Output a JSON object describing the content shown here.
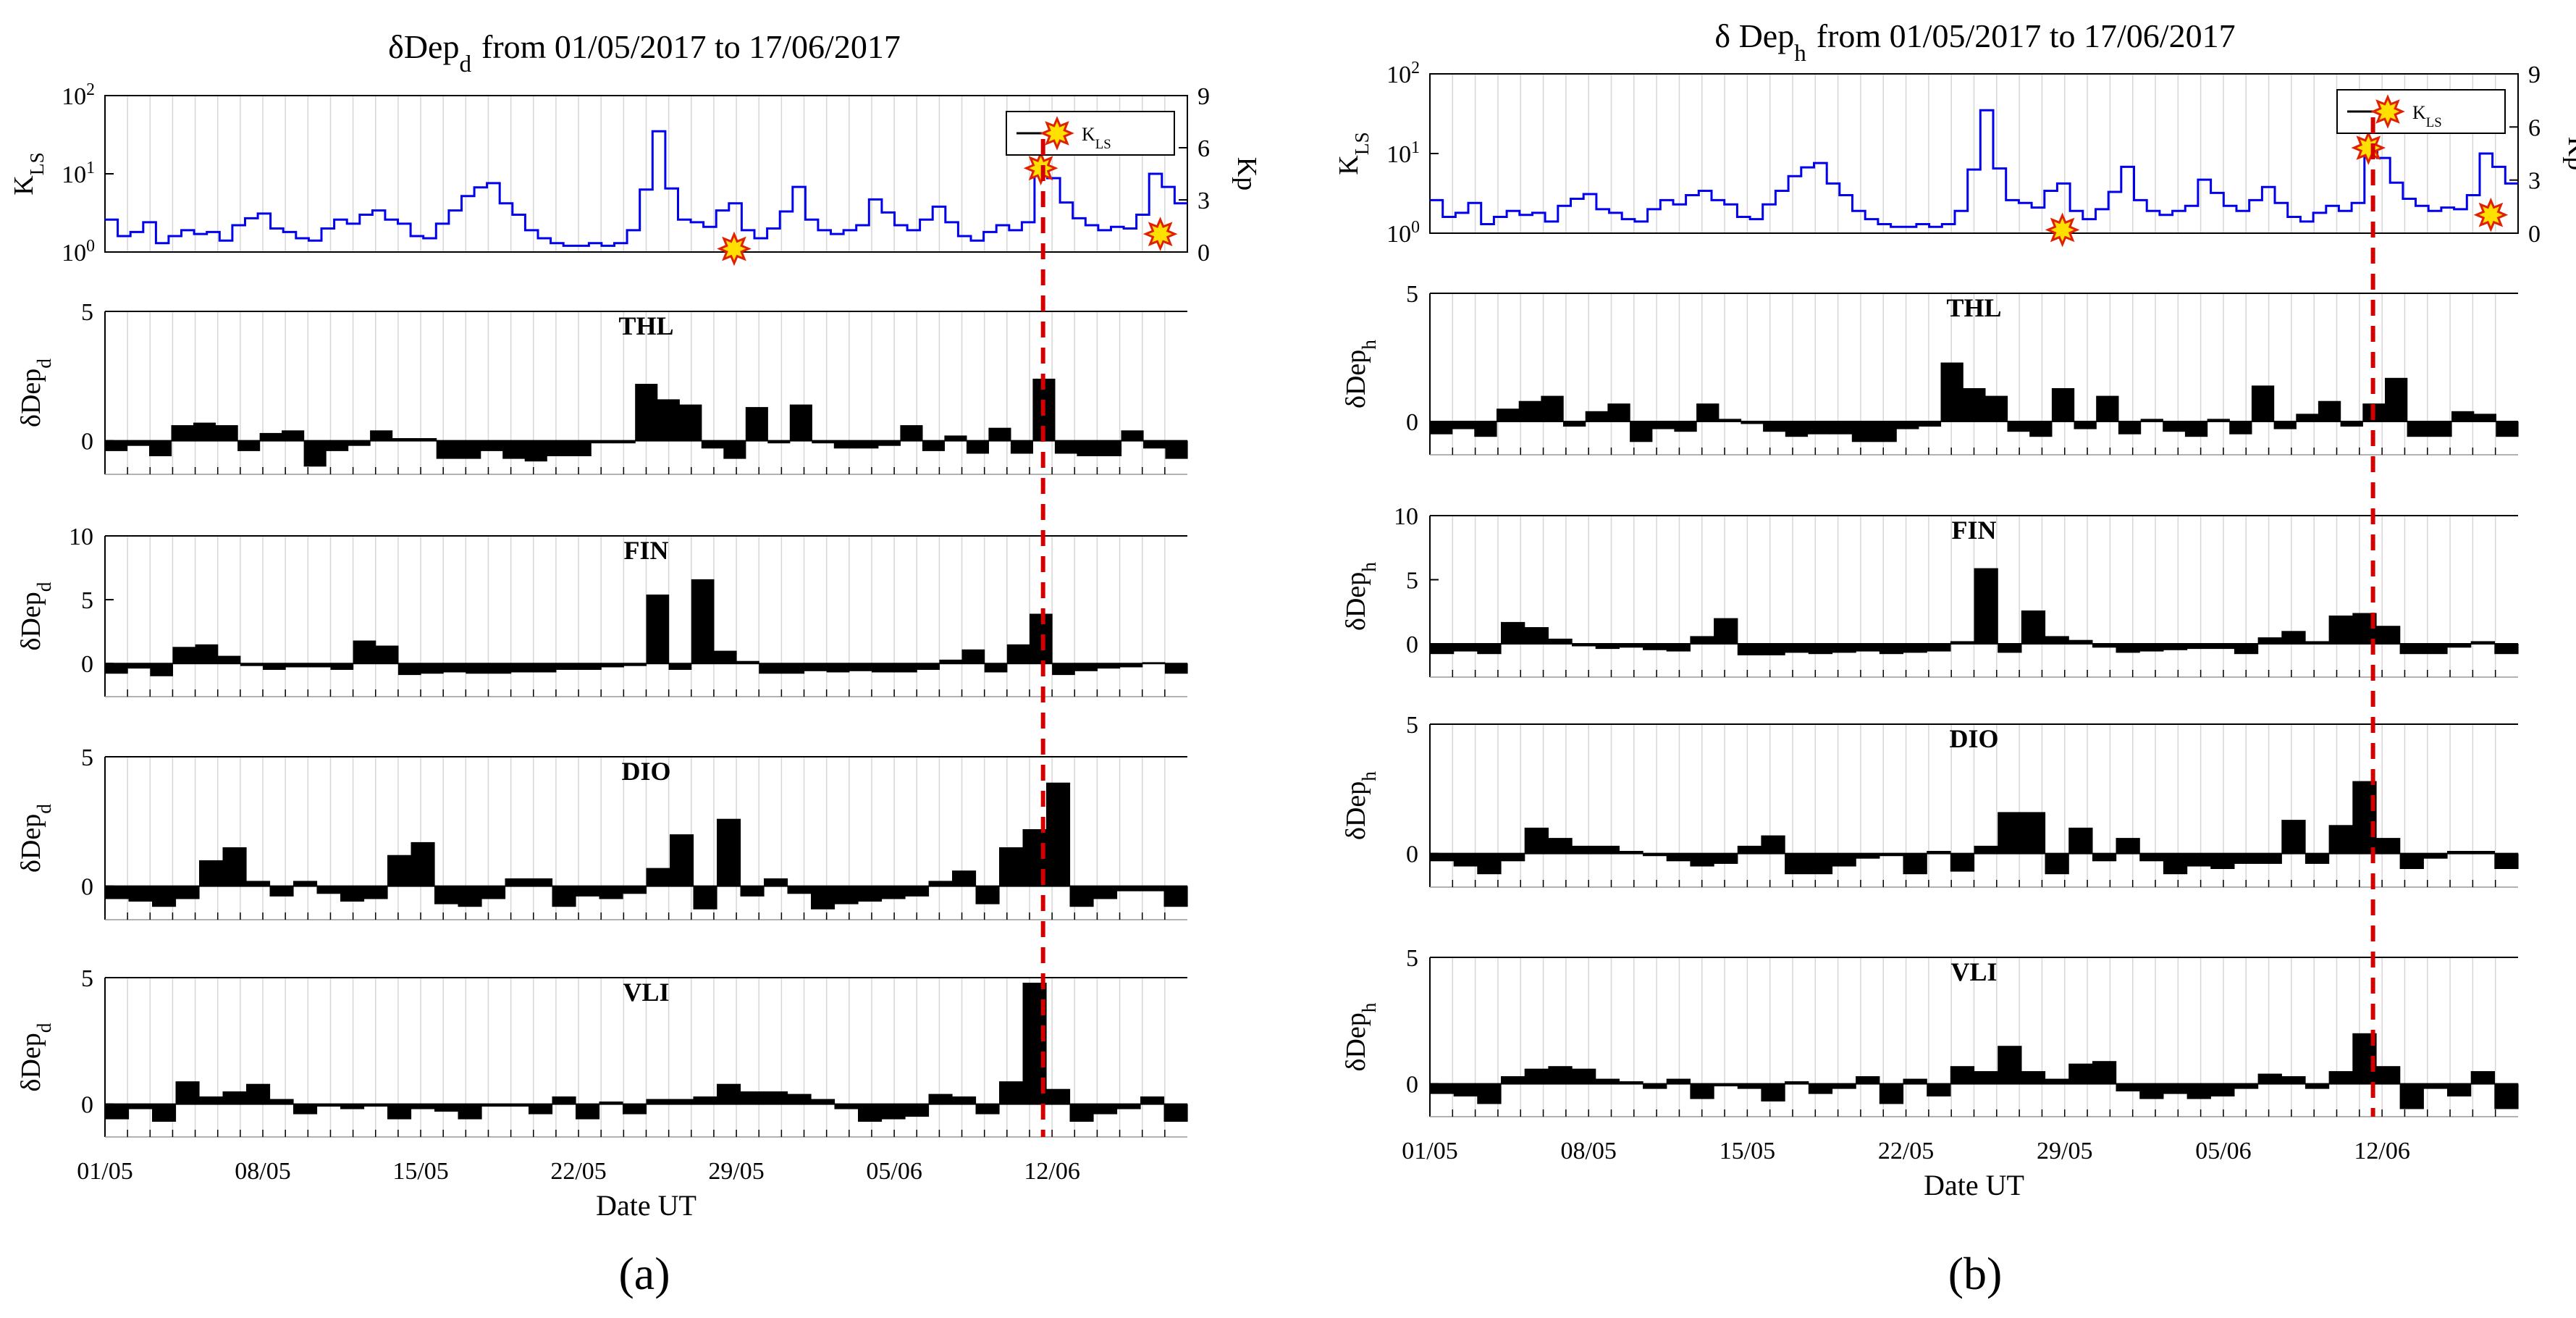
{
  "chart_data": [
    {
      "type": "bar",
      "id": "a",
      "panel_label": "(a)",
      "title_prefix": "δDep",
      "title_sub": "d",
      "title_suffix": "from  01/05/2017  to  17/06/2017",
      "kls": {
        "ylabel_main": "K",
        "ylabel_sub": "LS",
        "y2label": "Kp",
        "yticks": [
          {
            "base": "10",
            "exp": "0"
          },
          {
            "base": "10",
            "exp": "1"
          },
          {
            "base": "10",
            "exp": "2"
          }
        ],
        "y2ticks": [
          "0",
          "3",
          "6",
          "9"
        ],
        "legend": {
          "main": "K",
          "sub": "LS"
        },
        "series": [
          2.6,
          1.6,
          1.8,
          2.4,
          1.3,
          1.6,
          1.9,
          1.7,
          1.8,
          1.4,
          2.2,
          2.7,
          3.1,
          2.0,
          1.8,
          1.5,
          1.4,
          2.0,
          2.6,
          2.3,
          3.0,
          3.4,
          2.6,
          2.3,
          1.6,
          1.5,
          2.3,
          3.4,
          5.2,
          6.7,
          7.6,
          4.2,
          3.0,
          1.9,
          1.5,
          1.3,
          1.2,
          1.2,
          1.3,
          1.2,
          1.3,
          1.9,
          6.3,
          35.0,
          6.5,
          2.6,
          2.4,
          2.1,
          3.4,
          4.2,
          1.9,
          1.5,
          2.0,
          3.3,
          6.8,
          2.6,
          1.9,
          1.7,
          1.9,
          2.2,
          4.7,
          3.2,
          2.2,
          1.9,
          2.6,
          3.8,
          2.4,
          1.6,
          1.4,
          1.8,
          2.2,
          1.9,
          2.4,
          11.2,
          8.8,
          4.3,
          2.7,
          2.2,
          1.9,
          2.1,
          2.0,
          3.0,
          10.0,
          6.8,
          4.2
        ],
        "stars": [
          {
            "day": 27.9,
            "value": 1.1
          },
          {
            "day": 41.5,
            "value": 11.8
          },
          {
            "day": 46.8,
            "value": 1.7
          }
        ],
        "event_day": 41.6
      },
      "stations": [
        {
          "name": "THL",
          "ylabel_main": "δDep",
          "ylabel_sub": "d",
          "ymax": 5,
          "yticks": [
            "0",
            "5"
          ],
          "values": [
            -0.4,
            -0.2,
            -0.6,
            0.6,
            0.7,
            0.6,
            -0.4,
            0.3,
            0.4,
            -1.0,
            -0.4,
            -0.2,
            0.4,
            0.1,
            0.1,
            -0.7,
            -0.7,
            -0.4,
            -0.7,
            -0.8,
            -0.6,
            -0.6,
            -0.1,
            -0.1,
            2.2,
            1.6,
            1.4,
            -0.3,
            -0.7,
            1.3,
            -0.1,
            1.4,
            -0.1,
            -0.3,
            -0.3,
            -0.2,
            0.6,
            -0.4,
            0.2,
            -0.5,
            0.5,
            -0.5,
            2.4,
            -0.5,
            -0.6,
            -0.6,
            0.4,
            -0.3,
            -0.7
          ]
        },
        {
          "name": "FIN",
          "ylabel_main": "δDep",
          "ylabel_sub": "d",
          "ymax": 10,
          "yticks": [
            "0",
            "5",
            "10"
          ],
          "values": [
            -0.8,
            -0.4,
            -1.0,
            1.3,
            1.5,
            0.6,
            -0.2,
            -0.5,
            -0.3,
            -0.3,
            -0.5,
            1.8,
            1.4,
            -0.9,
            -0.8,
            -0.7,
            -0.8,
            -0.8,
            -0.7,
            -0.7,
            -0.5,
            -0.5,
            -0.3,
            -0.2,
            5.4,
            -0.5,
            6.6,
            1.0,
            0.2,
            -0.8,
            -0.8,
            -0.6,
            -0.7,
            -0.6,
            -0.7,
            -0.7,
            -0.5,
            0.3,
            1.1,
            -0.7,
            1.5,
            3.9,
            -0.9,
            -0.6,
            -0.4,
            -0.3,
            0.1,
            -0.8
          ]
        },
        {
          "name": "DIO",
          "ylabel_main": "δDep",
          "ylabel_sub": "d",
          "ymax": 5,
          "yticks": [
            "0",
            "5"
          ],
          "values": [
            -0.5,
            -0.6,
            -0.8,
            -0.5,
            1.0,
            1.5,
            0.2,
            -0.4,
            0.2,
            -0.3,
            -0.6,
            -0.5,
            1.2,
            1.7,
            -0.7,
            -0.8,
            -0.5,
            0.3,
            0.3,
            -0.8,
            -0.4,
            -0.5,
            -0.3,
            0.7,
            2.0,
            -0.9,
            2.6,
            -0.4,
            0.3,
            -0.3,
            -0.9,
            -0.7,
            -0.6,
            -0.5,
            -0.4,
            0.2,
            0.6,
            -0.7,
            1.5,
            2.2,
            4.0,
            -0.8,
            -0.5,
            -0.2,
            -0.2,
            -0.8
          ]
        },
        {
          "name": "VLI",
          "ylabel_main": "δDep",
          "ylabel_sub": "d",
          "ymax": 5,
          "yticks": [
            "0",
            "5"
          ],
          "values": [
            -0.6,
            -0.2,
            -0.7,
            0.9,
            0.3,
            0.5,
            0.8,
            0.2,
            -0.4,
            -0.1,
            -0.2,
            -0.1,
            -0.6,
            -0.2,
            -0.3,
            -0.6,
            -0.1,
            -0.1,
            -0.4,
            0.3,
            -0.6,
            0.1,
            -0.4,
            0.2,
            0.2,
            0.3,
            0.8,
            0.5,
            0.5,
            0.4,
            0.2,
            -0.2,
            -0.7,
            -0.6,
            -0.5,
            0.4,
            0.3,
            -0.4,
            0.9,
            4.8,
            0.6,
            -0.7,
            -0.4,
            -0.2,
            0.3,
            -0.7
          ]
        }
      ],
      "xticks": [
        "01/05",
        "08/05",
        "15/05",
        "22/05",
        "29/05",
        "05/06",
        "12/06"
      ],
      "xlabel": "Date UT"
    },
    {
      "type": "bar",
      "id": "b",
      "panel_label": "(b)",
      "title_prefix": "δ Dep",
      "title_sub": "h",
      "title_suffix": "from  01/05/2017  to  17/06/2017",
      "kls": {
        "ylabel_main": "K",
        "ylabel_sub": "LS",
        "y2label": "Kp",
        "yticks": [
          {
            "base": "10",
            "exp": "0"
          },
          {
            "base": "10",
            "exp": "1"
          },
          {
            "base": "10",
            "exp": "2"
          }
        ],
        "y2ticks": [
          "0",
          "3",
          "6",
          "9"
        ],
        "legend": {
          "main": "K",
          "sub": "LS"
        },
        "series": [
          2.6,
          1.6,
          1.8,
          2.4,
          1.3,
          1.6,
          1.9,
          1.7,
          1.8,
          1.4,
          2.2,
          2.7,
          3.1,
          2.0,
          1.8,
          1.5,
          1.4,
          2.0,
          2.6,
          2.3,
          3.0,
          3.4,
          2.6,
          2.3,
          1.6,
          1.5,
          2.3,
          3.4,
          5.2,
          6.7,
          7.6,
          4.2,
          3.0,
          1.9,
          1.5,
          1.3,
          1.2,
          1.2,
          1.3,
          1.2,
          1.3,
          1.9,
          6.3,
          35.0,
          6.5,
          2.6,
          2.4,
          2.1,
          3.4,
          4.2,
          1.9,
          1.5,
          2.0,
          3.3,
          6.8,
          2.6,
          1.9,
          1.7,
          1.9,
          2.2,
          4.7,
          3.2,
          2.2,
          1.9,
          2.6,
          3.8,
          2.4,
          1.6,
          1.4,
          1.8,
          2.2,
          1.9,
          2.4,
          11.2,
          8.8,
          4.3,
          2.7,
          2.2,
          1.9,
          2.1,
          2.0,
          3.0,
          10.0,
          6.8,
          4.2
        ],
        "stars": [
          {
            "day": 27.9,
            "value": 1.1
          },
          {
            "day": 41.4,
            "value": 11.8
          },
          {
            "day": 46.8,
            "value": 1.7
          }
        ],
        "event_day": 41.6
      },
      "stations": [
        {
          "name": "THL",
          "ylabel_main": "δDep",
          "ylabel_sub": "h",
          "ymax": 5,
          "yticks": [
            "0",
            "5"
          ],
          "values": [
            -0.5,
            -0.3,
            -0.6,
            0.5,
            0.8,
            1.0,
            -0.2,
            0.4,
            0.7,
            -0.8,
            -0.3,
            -0.4,
            0.7,
            0.1,
            -0.1,
            -0.4,
            -0.6,
            -0.5,
            -0.5,
            -0.8,
            -0.8,
            -0.3,
            -0.2,
            2.3,
            1.3,
            1.0,
            -0.4,
            -0.6,
            1.3,
            -0.3,
            1.0,
            -0.5,
            0.1,
            -0.4,
            -0.6,
            0.1,
            -0.5,
            1.4,
            -0.3,
            0.3,
            0.8,
            -0.2,
            0.7,
            1.7,
            -0.6,
            -0.6,
            0.4,
            0.3,
            -0.6
          ]
        },
        {
          "name": "FIN",
          "ylabel_main": "δDep",
          "ylabel_sub": "h",
          "ymax": 10,
          "yticks": [
            "0",
            "5",
            "10"
          ],
          "values": [
            -0.8,
            -0.6,
            -0.8,
            1.7,
            1.3,
            0.4,
            -0.2,
            -0.4,
            -0.3,
            -0.5,
            -0.6,
            0.6,
            2.0,
            -0.9,
            -0.9,
            -0.7,
            -0.8,
            -0.7,
            -0.6,
            -0.8,
            -0.7,
            -0.6,
            0.2,
            5.9,
            -0.7,
            2.6,
            0.6,
            0.3,
            -0.3,
            -0.7,
            -0.6,
            -0.5,
            -0.4,
            -0.4,
            -0.8,
            0.5,
            1.0,
            0.2,
            2.2,
            2.4,
            1.4,
            -0.8,
            -0.8,
            -0.3,
            0.2,
            -0.8
          ]
        },
        {
          "name": "DIO",
          "ylabel_main": "δDep",
          "ylabel_sub": "h",
          "ymax": 5,
          "yticks": [
            "0",
            "5"
          ],
          "values": [
            -0.3,
            -0.5,
            -0.8,
            -0.3,
            1.0,
            0.6,
            0.3,
            0.3,
            0.1,
            -0.1,
            -0.3,
            -0.5,
            -0.4,
            0.3,
            0.7,
            -0.8,
            -0.8,
            -0.5,
            -0.2,
            -0.1,
            -0.8,
            0.1,
            -0.7,
            0.3,
            1.6,
            1.6,
            -0.8,
            1.0,
            -0.3,
            0.6,
            -0.3,
            -0.8,
            -0.5,
            -0.6,
            -0.4,
            -0.4,
            1.3,
            -0.4,
            1.1,
            2.8,
            0.6,
            -0.6,
            -0.2,
            0.1,
            0.1,
            -0.6
          ]
        },
        {
          "name": "VLI",
          "ylabel_main": "δDep",
          "ylabel_sub": "h",
          "ymax": 5,
          "yticks": [
            "0",
            "5"
          ],
          "values": [
            -0.4,
            -0.5,
            -0.8,
            0.3,
            0.6,
            0.7,
            0.6,
            0.2,
            0.1,
            -0.2,
            0.2,
            -0.6,
            -0.1,
            -0.2,
            -0.7,
            0.1,
            -0.4,
            -0.2,
            0.3,
            -0.8,
            0.2,
            -0.5,
            0.7,
            0.5,
            1.5,
            0.5,
            0.2,
            0.8,
            0.9,
            -0.3,
            -0.6,
            -0.4,
            -0.6,
            -0.5,
            -0.2,
            0.4,
            0.3,
            -0.2,
            0.5,
            2.0,
            0.7,
            -1.0,
            -0.2,
            -0.5,
            0.5,
            -1.0
          ]
        }
      ],
      "xticks": [
        "01/05",
        "08/05",
        "15/05",
        "22/05",
        "29/05",
        "05/06",
        "12/06"
      ],
      "xlabel": "Date UT"
    }
  ],
  "colors": {
    "kls_line": "#0000ee",
    "event_line": "#d40000",
    "bars": "#000000",
    "grid": "#d6d6d6",
    "star_fill": "#ffe000",
    "star_stroke": "#e02000"
  }
}
